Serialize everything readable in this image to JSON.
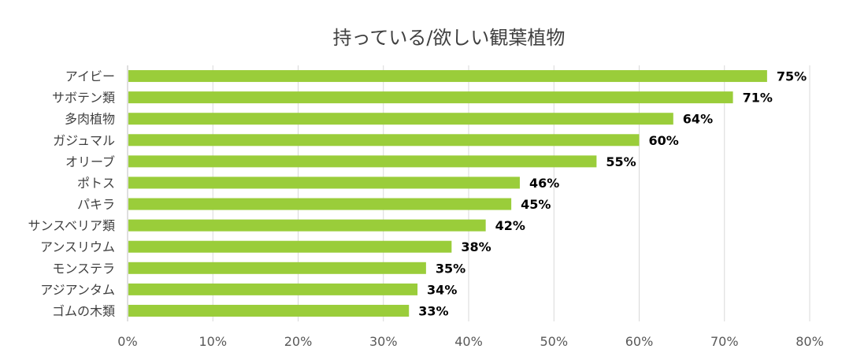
{
  "chart_data": {
    "type": "bar",
    "orientation": "horizontal",
    "title": "持っている/欲しい観葉植物",
    "categories": [
      "アイビー",
      "サボテン類",
      "多肉植物",
      "ガジュマル",
      "オリーブ",
      "ポトス",
      "パキラ",
      "サンスベリア類",
      "アンスリウム",
      "モンステラ",
      "アジアンタム",
      "ゴムの木類"
    ],
    "values": [
      75,
      71,
      64,
      60,
      55,
      46,
      45,
      42,
      38,
      35,
      34,
      33
    ],
    "data_labels": [
      "75%",
      "71%",
      "64%",
      "60%",
      "55%",
      "46%",
      "45%",
      "42%",
      "38%",
      "35%",
      "34%",
      "33%"
    ],
    "xlim": [
      0,
      80
    ],
    "ticks": [
      0,
      10,
      20,
      30,
      40,
      50,
      60,
      70,
      80
    ],
    "tick_labels": [
      "0%",
      "10%",
      "20%",
      "30%",
      "40%",
      "50%",
      "60%",
      "70%",
      "80%"
    ],
    "grid": true,
    "legend": "none",
    "bar_color": "#9acd3a"
  }
}
